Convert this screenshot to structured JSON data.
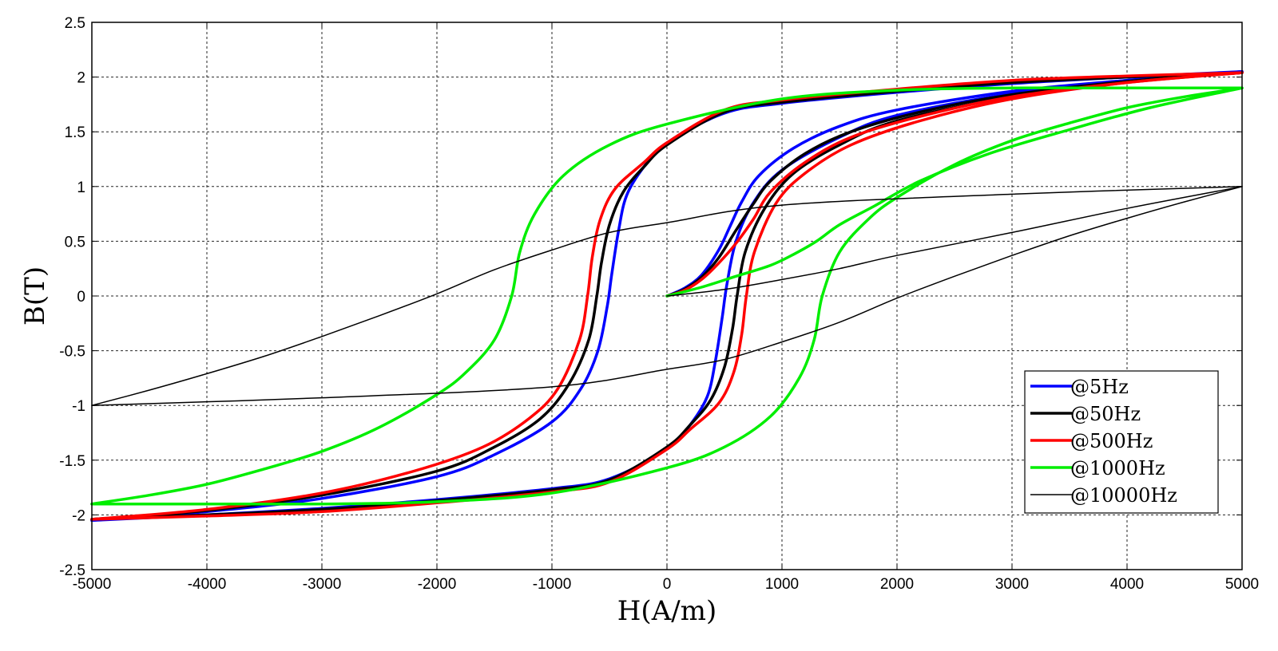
{
  "chart_data": {
    "type": "line",
    "title": "",
    "xlabel": "H(A/m)",
    "ylabel": "B(T)",
    "xlim": [
      -5000,
      5000
    ],
    "ylim": [
      -2.5,
      2.5
    ],
    "grid": true,
    "x_ticks": [
      -5000,
      -4000,
      -3000,
      -2000,
      -1000,
      0,
      1000,
      2000,
      3000,
      4000,
      5000
    ],
    "y_ticks": [
      -2.5,
      -2,
      -1.5,
      -1,
      -0.5,
      0,
      0.5,
      1,
      1.5,
      2,
      2.5
    ],
    "x_tick_labels": [
      "-5000",
      "-4000",
      "-3000",
      "-2000",
      "-1000",
      "0",
      "1000",
      "2000",
      "3000",
      "4000",
      "5000"
    ],
    "y_tick_labels": [
      "-2.5",
      "-2",
      "-1.5",
      "-1",
      "-0.5",
      "0",
      "0.5",
      "1",
      "1.5",
      "2",
      "2.5"
    ],
    "legend_position": "bottom-right",
    "series": [
      {
        "name": "@5Hz",
        "color": "#0000ff",
        "line_width": 3.5,
        "virgin": [
          [
            0,
            0
          ],
          [
            150,
            0.07
          ],
          [
            300,
            0.19
          ],
          [
            450,
            0.42
          ],
          [
            550,
            0.64
          ],
          [
            650,
            0.86
          ],
          [
            800,
            1.1
          ],
          [
            1100,
            1.35
          ],
          [
            1500,
            1.55
          ],
          [
            2000,
            1.7
          ],
          [
            3000,
            1.87
          ],
          [
            4000,
            1.97
          ],
          [
            5000,
            2.05
          ]
        ],
        "descending": [
          [
            5000,
            2.05
          ],
          [
            4000,
            2.0
          ],
          [
            3000,
            1.94
          ],
          [
            2000,
            1.86
          ],
          [
            1000,
            1.76
          ],
          [
            500,
            1.67
          ],
          [
            0,
            1.4
          ],
          [
            -200,
            1.18
          ],
          [
            -350,
            0.92
          ],
          [
            -420,
            0.6
          ],
          [
            -480,
            0.2
          ],
          [
            -520,
            -0.1
          ],
          [
            -600,
            -0.5
          ],
          [
            -750,
            -0.85
          ],
          [
            -1000,
            -1.15
          ],
          [
            -1500,
            -1.45
          ],
          [
            -2000,
            -1.65
          ],
          [
            -3000,
            -1.85
          ],
          [
            -4000,
            -1.97
          ],
          [
            -5000,
            -2.05
          ]
        ],
        "ascending": [
          [
            -5000,
            -2.05
          ],
          [
            -4000,
            -2.0
          ],
          [
            -3000,
            -1.94
          ],
          [
            -2000,
            -1.86
          ],
          [
            -1000,
            -1.76
          ],
          [
            -500,
            -1.67
          ],
          [
            0,
            -1.4
          ],
          [
            200,
            -1.18
          ],
          [
            350,
            -0.92
          ],
          [
            420,
            -0.6
          ],
          [
            480,
            -0.2
          ],
          [
            520,
            0.1
          ],
          [
            600,
            0.5
          ],
          [
            750,
            0.85
          ],
          [
            1000,
            1.15
          ],
          [
            1500,
            1.45
          ],
          [
            2000,
            1.65
          ],
          [
            3000,
            1.85
          ],
          [
            4000,
            1.97
          ],
          [
            5000,
            2.05
          ]
        ]
      },
      {
        "name": "@50Hz",
        "color": "#000000",
        "line_width": 3.5,
        "virgin": [
          [
            0,
            0
          ],
          [
            150,
            0.06
          ],
          [
            300,
            0.17
          ],
          [
            450,
            0.35
          ],
          [
            600,
            0.6
          ],
          [
            750,
            0.84
          ],
          [
            900,
            1.05
          ],
          [
            1200,
            1.3
          ],
          [
            1600,
            1.5
          ],
          [
            2200,
            1.68
          ],
          [
            3000,
            1.84
          ],
          [
            4000,
            1.96
          ],
          [
            5000,
            2.04
          ]
        ],
        "descending": [
          [
            5000,
            2.04
          ],
          [
            4000,
            2.0
          ],
          [
            3000,
            1.95
          ],
          [
            2000,
            1.87
          ],
          [
            1000,
            1.77
          ],
          [
            500,
            1.68
          ],
          [
            0,
            1.38
          ],
          [
            -200,
            1.18
          ],
          [
            -380,
            0.95
          ],
          [
            -500,
            0.65
          ],
          [
            -570,
            0.3
          ],
          [
            -610,
            0.0
          ],
          [
            -680,
            -0.4
          ],
          [
            -850,
            -0.8
          ],
          [
            -1100,
            -1.12
          ],
          [
            -1500,
            -1.38
          ],
          [
            -2000,
            -1.6
          ],
          [
            -3000,
            -1.82
          ],
          [
            -4000,
            -1.96
          ],
          [
            -5000,
            -2.04
          ]
        ],
        "ascending": [
          [
            -5000,
            -2.04
          ],
          [
            -4000,
            -2.0
          ],
          [
            -3000,
            -1.95
          ],
          [
            -2000,
            -1.87
          ],
          [
            -1000,
            -1.77
          ],
          [
            -500,
            -1.68
          ],
          [
            0,
            -1.38
          ],
          [
            200,
            -1.18
          ],
          [
            380,
            -0.95
          ],
          [
            500,
            -0.65
          ],
          [
            570,
            -0.3
          ],
          [
            610,
            0.0
          ],
          [
            680,
            0.4
          ],
          [
            850,
            0.8
          ],
          [
            1100,
            1.12
          ],
          [
            1500,
            1.38
          ],
          [
            2000,
            1.6
          ],
          [
            3000,
            1.82
          ],
          [
            4000,
            1.96
          ],
          [
            5000,
            2.04
          ]
        ]
      },
      {
        "name": "@500Hz",
        "color": "#ff0000",
        "line_width": 3.5,
        "virgin": [
          [
            0,
            0
          ],
          [
            150,
            0.05
          ],
          [
            300,
            0.15
          ],
          [
            450,
            0.3
          ],
          [
            600,
            0.48
          ],
          [
            750,
            0.7
          ],
          [
            900,
            0.95
          ],
          [
            1200,
            1.22
          ],
          [
            1600,
            1.45
          ],
          [
            2200,
            1.64
          ],
          [
            3000,
            1.82
          ],
          [
            4000,
            1.95
          ],
          [
            5000,
            2.04
          ]
        ],
        "descending": [
          [
            5000,
            2.04
          ],
          [
            4000,
            2.01
          ],
          [
            3000,
            1.97
          ],
          [
            2000,
            1.89
          ],
          [
            1000,
            1.79
          ],
          [
            500,
            1.7
          ],
          [
            0,
            1.4
          ],
          [
            -200,
            1.22
          ],
          [
            -450,
            0.98
          ],
          [
            -580,
            0.7
          ],
          [
            -650,
            0.35
          ],
          [
            -690,
            0.0
          ],
          [
            -760,
            -0.4
          ],
          [
            -950,
            -0.85
          ],
          [
            -1200,
            -1.12
          ],
          [
            -1600,
            -1.38
          ],
          [
            -2200,
            -1.6
          ],
          [
            -3000,
            -1.8
          ],
          [
            -4000,
            -1.95
          ],
          [
            -5000,
            -2.04
          ]
        ],
        "ascending": [
          [
            -5000,
            -2.04
          ],
          [
            -4000,
            -2.01
          ],
          [
            -3000,
            -1.97
          ],
          [
            -2000,
            -1.89
          ],
          [
            -1000,
            -1.79
          ],
          [
            -500,
            -1.7
          ],
          [
            0,
            -1.4
          ],
          [
            200,
            -1.22
          ],
          [
            450,
            -0.98
          ],
          [
            580,
            -0.7
          ],
          [
            650,
            -0.35
          ],
          [
            690,
            0.0
          ],
          [
            760,
            0.4
          ],
          [
            950,
            0.85
          ],
          [
            1200,
            1.12
          ],
          [
            1600,
            1.38
          ],
          [
            2200,
            1.6
          ],
          [
            3000,
            1.8
          ],
          [
            4000,
            1.95
          ],
          [
            5000,
            2.04
          ]
        ]
      },
      {
        "name": "@1000Hz",
        "color": "#00ee00",
        "line_width": 3.5,
        "virgin": [
          [
            0,
            0
          ],
          [
            300,
            0.08
          ],
          [
            600,
            0.18
          ],
          [
            900,
            0.28
          ],
          [
            1100,
            0.38
          ],
          [
            1300,
            0.5
          ],
          [
            1500,
            0.65
          ],
          [
            1800,
            0.82
          ],
          [
            2200,
            1.05
          ],
          [
            2800,
            1.3
          ],
          [
            3500,
            1.52
          ],
          [
            4200,
            1.72
          ],
          [
            5000,
            1.9
          ]
        ],
        "descending": [
          [
            5000,
            1.9
          ],
          [
            4000,
            1.9
          ],
          [
            3000,
            1.9
          ],
          [
            2000,
            1.88
          ],
          [
            1000,
            1.8
          ],
          [
            0,
            1.57
          ],
          [
            -500,
            1.38
          ],
          [
            -900,
            1.1
          ],
          [
            -1150,
            0.75
          ],
          [
            -1280,
            0.4
          ],
          [
            -1350,
            0.0
          ],
          [
            -1500,
            -0.4
          ],
          [
            -1750,
            -0.7
          ],
          [
            -2000,
            -0.9
          ],
          [
            -2500,
            -1.2
          ],
          [
            -3000,
            -1.42
          ],
          [
            -3500,
            -1.58
          ],
          [
            -4000,
            -1.72
          ],
          [
            -4500,
            -1.82
          ],
          [
            -5000,
            -1.9
          ]
        ],
        "ascending": [
          [
            -5000,
            -1.9
          ],
          [
            -4000,
            -1.9
          ],
          [
            -3000,
            -1.9
          ],
          [
            -2000,
            -1.88
          ],
          [
            -1000,
            -1.8
          ],
          [
            0,
            -1.57
          ],
          [
            500,
            -1.38
          ],
          [
            900,
            -1.1
          ],
          [
            1150,
            -0.75
          ],
          [
            1280,
            -0.4
          ],
          [
            1350,
            0.0
          ],
          [
            1500,
            0.4
          ],
          [
            1750,
            0.7
          ],
          [
            2000,
            0.9
          ],
          [
            2500,
            1.2
          ],
          [
            3000,
            1.42
          ],
          [
            3500,
            1.58
          ],
          [
            4000,
            1.72
          ],
          [
            4500,
            1.82
          ],
          [
            5000,
            1.9
          ]
        ]
      },
      {
        "name": "@10000Hz",
        "color": "#000000",
        "line_width": 1.5,
        "virgin": [
          [
            0,
            0
          ],
          [
            500,
            0.06
          ],
          [
            1000,
            0.15
          ],
          [
            1500,
            0.25
          ],
          [
            2000,
            0.37
          ],
          [
            3000,
            0.58
          ],
          [
            4000,
            0.8
          ],
          [
            5000,
            1.0
          ]
        ],
        "descending": [
          [
            5000,
            1.0
          ],
          [
            3000,
            0.93
          ],
          [
            1000,
            0.83
          ],
          [
            0,
            0.67
          ],
          [
            -500,
            0.58
          ],
          [
            -1000,
            0.42
          ],
          [
            -1500,
            0.24
          ],
          [
            -2000,
            0.02
          ],
          [
            -2500,
            -0.18
          ],
          [
            -3000,
            -0.37
          ],
          [
            -3500,
            -0.55
          ],
          [
            -4000,
            -0.71
          ],
          [
            -4500,
            -0.86
          ],
          [
            -5000,
            -1.0
          ]
        ],
        "ascending": [
          [
            -5000,
            -1.0
          ],
          [
            -3000,
            -0.93
          ],
          [
            -1000,
            -0.83
          ],
          [
            0,
            -0.67
          ],
          [
            500,
            -0.58
          ],
          [
            1000,
            -0.42
          ],
          [
            1500,
            -0.24
          ],
          [
            2000,
            -0.02
          ],
          [
            2500,
            0.18
          ],
          [
            3000,
            0.37
          ],
          [
            3500,
            0.55
          ],
          [
            4000,
            0.71
          ],
          [
            4500,
            0.86
          ],
          [
            5000,
            1.0
          ]
        ]
      }
    ]
  }
}
